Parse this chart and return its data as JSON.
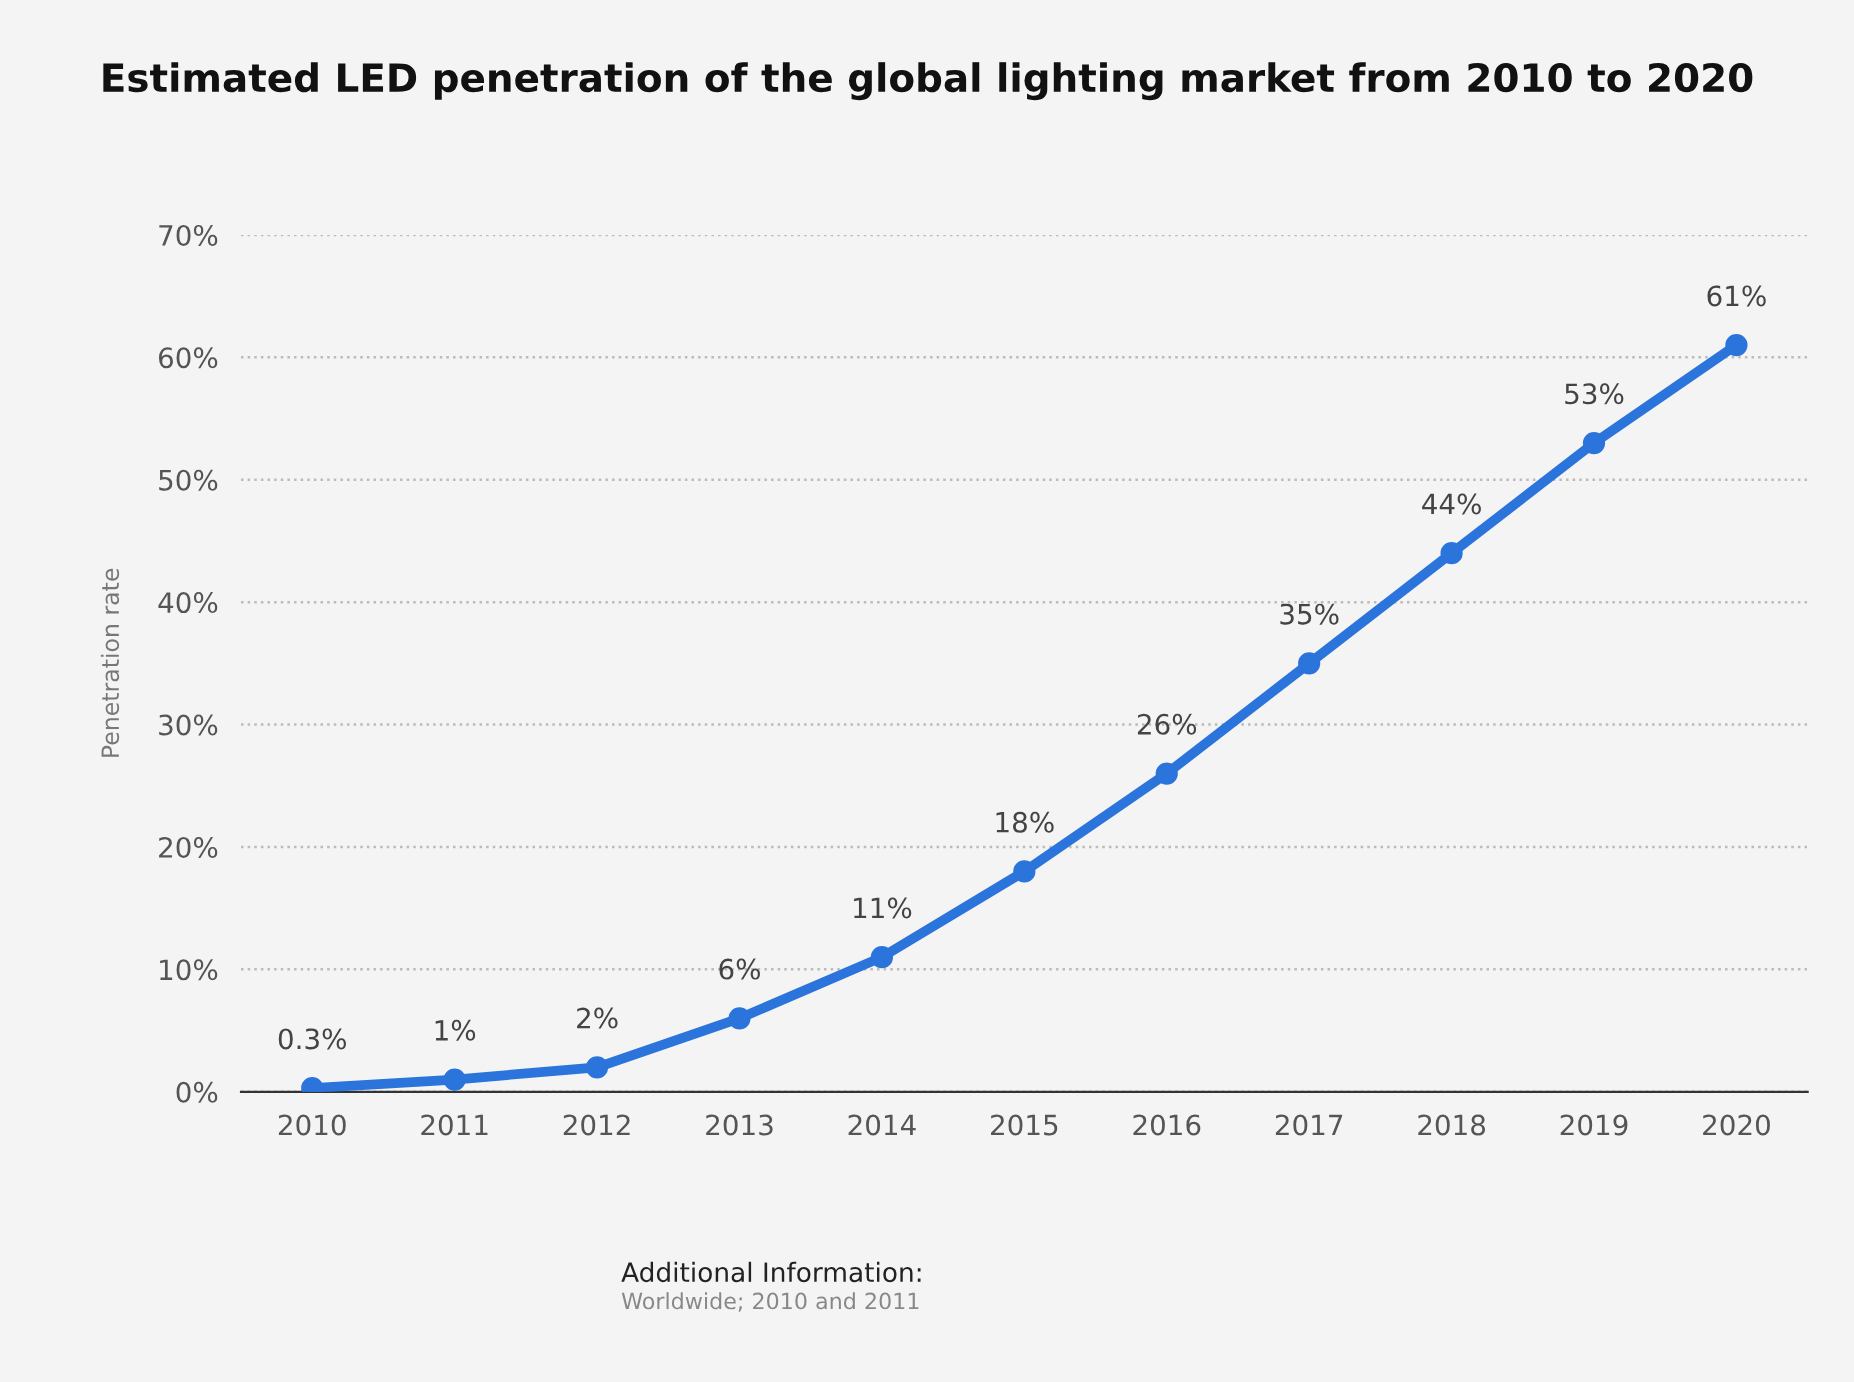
{
  "chart_data": {
    "type": "line",
    "title": "Estimated LED penetration of the global lighting market from 2010 to 2020",
    "ylabel": "Penetration rate",
    "categories": [
      "2010",
      "2011",
      "2012",
      "2013",
      "2014",
      "2015",
      "2016",
      "2017",
      "2018",
      "2019",
      "2020"
    ],
    "values": [
      0.3,
      1,
      2,
      6,
      11,
      18,
      26,
      35,
      44,
      53,
      61
    ],
    "value_labels": [
      "0.3%",
      "1%",
      "2%",
      "6%",
      "11%",
      "18%",
      "26%",
      "35%",
      "44%",
      "53%",
      "61%"
    ],
    "color": "#2a74db",
    "marker": "circle",
    "line_style": "solid",
    "grid": "y",
    "legend": false,
    "ylim": [
      0,
      70
    ],
    "yticks": [
      {
        "value": 0,
        "label": "0%"
      },
      {
        "value": 10,
        "label": "10%"
      },
      {
        "value": 20,
        "label": "20%"
      },
      {
        "value": 30,
        "label": "30%"
      },
      {
        "value": 40,
        "label": "40%"
      },
      {
        "value": 50,
        "label": "50%"
      },
      {
        "value": 60,
        "label": "60%"
      },
      {
        "value": 70,
        "label": "70%"
      }
    ],
    "annotations": [
      "Additional Information:",
      "Worldwide; 2010 and 2011"
    ]
  }
}
